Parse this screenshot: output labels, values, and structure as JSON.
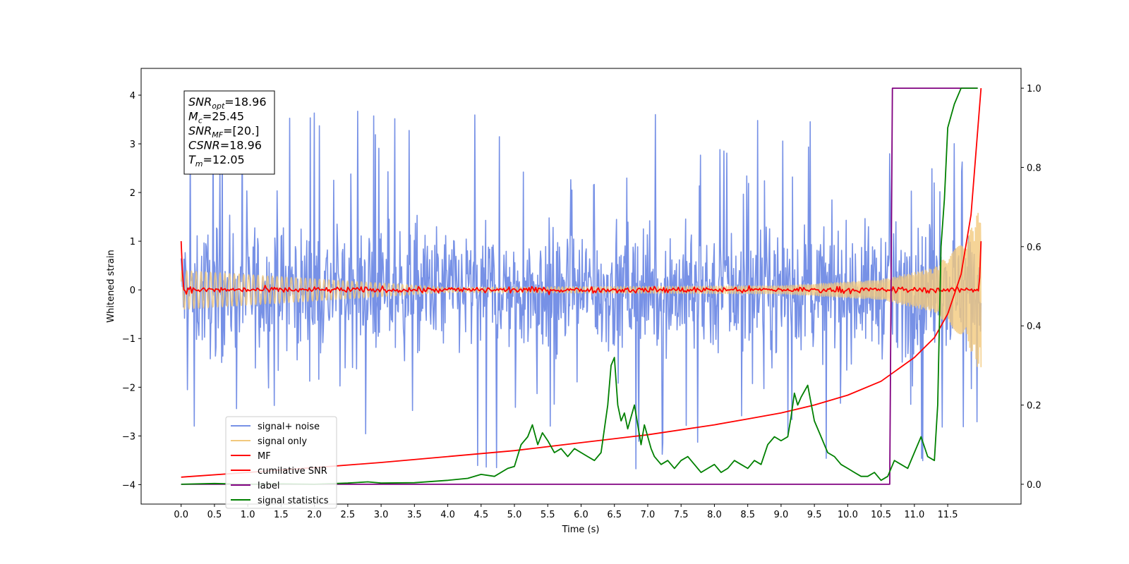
{
  "chart_data": {
    "type": "line",
    "title": "",
    "xlabel": "Time (s)",
    "ylabel": "Whitened strain",
    "y2label": "",
    "xlim": [
      -0.6,
      12.6
    ],
    "ylim": [
      -4.4,
      4.55
    ],
    "y2lim": [
      -0.05,
      1.05
    ],
    "x_ticks": [
      0.0,
      0.5,
      1.0,
      1.5,
      2.0,
      2.5,
      3.0,
      3.5,
      4.0,
      4.5,
      5.0,
      5.5,
      6.0,
      6.5,
      7.0,
      7.5,
      8.0,
      8.5,
      9.0,
      9.5,
      10.0,
      10.5,
      11.0,
      11.5
    ],
    "x_tick_labels": [
      "0.0",
      "0.5",
      "1.0",
      "1.5",
      "2.0",
      "2.5",
      "3.0",
      "3.5",
      "4.0",
      "4.5",
      "5.0",
      "5.5",
      "6.0",
      "6.5",
      "7.0",
      "7.5",
      "8.0",
      "8.5",
      "9.0",
      "9.5",
      "10.0",
      "10.5",
      "11.0",
      "11.5"
    ],
    "y_ticks": [
      -4,
      -3,
      -2,
      -1,
      0,
      1,
      2,
      3,
      4
    ],
    "y_tick_labels": [
      "−4",
      "−3",
      "−2",
      "−1",
      "0",
      "1",
      "2",
      "3",
      "4"
    ],
    "y2_ticks": [
      0.0,
      0.2,
      0.4,
      0.6,
      0.8,
      1.0
    ],
    "y2_tick_labels": [
      "0.0",
      "0.2",
      "0.4",
      "0.6",
      "0.8",
      "1.0"
    ],
    "grid": false,
    "legend_position": "lower-left",
    "annotation_lines": [
      {
        "var": "SNR",
        "sub": "opt",
        "value": "=18.96"
      },
      {
        "var": "M",
        "sub": "c",
        "value": "=25.45"
      },
      {
        "var": "SNR",
        "sub": "MF",
        "value": "=[20.]"
      },
      {
        "var": "CSNR",
        "sub": "",
        "value": "=18.96"
      },
      {
        "var": "T",
        "sub": "m",
        "value": "=12.05"
      }
    ],
    "series": [
      {
        "name": "signal+ noise",
        "axis": "left",
        "color": "#7791e6",
        "kind": "noise",
        "t_start": 0.0,
        "t_end": 12.0,
        "n": 1400,
        "base_amplitude": 1.15,
        "spike_max": 3.9
      },
      {
        "name": "signal only",
        "axis": "left",
        "color": "#f2c97d",
        "kind": "chirp",
        "t_start": 0.0,
        "t_end": 12.0,
        "envelope": [
          [
            0.0,
            0.4
          ],
          [
            4.0,
            0.05
          ],
          [
            9.0,
            0.08
          ],
          [
            10.5,
            0.2
          ],
          [
            11.3,
            0.45
          ],
          [
            11.8,
            1.1
          ],
          [
            12.0,
            1.75
          ]
        ]
      },
      {
        "name": "MF",
        "axis": "left",
        "color": "#ff0000",
        "kind": "mf",
        "t_start": 0.0,
        "t_end": 12.0,
        "n": 600,
        "start_value": 1.0,
        "end_value": 1.0,
        "noise_amplitude": 0.05
      },
      {
        "name": "cumilative SNR",
        "axis": "right",
        "color": "#ff0000",
        "kind": "line",
        "x": [
          0.0,
          1.0,
          2.0,
          3.0,
          4.0,
          5.0,
          6.0,
          7.0,
          8.0,
          8.5,
          9.0,
          9.5,
          10.0,
          10.5,
          11.0,
          11.3,
          11.5,
          11.7,
          11.85,
          12.0
        ],
        "values": [
          0.018,
          0.03,
          0.042,
          0.055,
          0.07,
          0.085,
          0.105,
          0.125,
          0.15,
          0.165,
          0.18,
          0.2,
          0.225,
          0.26,
          0.32,
          0.37,
          0.43,
          0.53,
          0.68,
          1.0
        ]
      },
      {
        "name": "label",
        "axis": "right",
        "color": "#800080",
        "kind": "line",
        "x": [
          0.0,
          10.63,
          10.67,
          11.95
        ],
        "values": [
          0.0,
          0.0,
          1.0,
          1.0
        ]
      },
      {
        "name": "signal statistics",
        "axis": "right",
        "color": "#008000",
        "kind": "line",
        "x": [
          0.0,
          0.5,
          1.0,
          1.5,
          2.0,
          2.5,
          2.8,
          3.0,
          3.5,
          4.0,
          4.3,
          4.5,
          4.7,
          4.9,
          5.0,
          5.1,
          5.2,
          5.27,
          5.35,
          5.42,
          5.5,
          5.6,
          5.7,
          5.8,
          5.9,
          6.0,
          6.1,
          6.2,
          6.3,
          6.4,
          6.45,
          6.5,
          6.55,
          6.6,
          6.65,
          6.7,
          6.8,
          6.9,
          6.95,
          7.0,
          7.05,
          7.1,
          7.2,
          7.3,
          7.4,
          7.5,
          7.6,
          7.7,
          7.8,
          7.9,
          8.0,
          8.1,
          8.2,
          8.3,
          8.4,
          8.5,
          8.6,
          8.7,
          8.8,
          8.9,
          9.0,
          9.1,
          9.15,
          9.2,
          9.25,
          9.3,
          9.4,
          9.5,
          9.6,
          9.7,
          9.8,
          9.9,
          10.0,
          10.1,
          10.2,
          10.3,
          10.4,
          10.5,
          10.6,
          10.7,
          10.8,
          10.9,
          11.0,
          11.1,
          11.2,
          11.3,
          11.35,
          11.4,
          11.45,
          11.5,
          11.55,
          11.6,
          11.7,
          11.8,
          11.9,
          11.95
        ],
        "values": [
          0.0,
          0.002,
          0.0,
          0.001,
          0.0,
          0.003,
          0.006,
          0.003,
          0.004,
          0.01,
          0.015,
          0.025,
          0.02,
          0.04,
          0.045,
          0.1,
          0.12,
          0.15,
          0.1,
          0.13,
          0.11,
          0.08,
          0.09,
          0.07,
          0.09,
          0.08,
          0.07,
          0.06,
          0.08,
          0.2,
          0.3,
          0.32,
          0.2,
          0.16,
          0.18,
          0.14,
          0.2,
          0.1,
          0.15,
          0.12,
          0.09,
          0.07,
          0.05,
          0.06,
          0.04,
          0.06,
          0.07,
          0.05,
          0.03,
          0.04,
          0.05,
          0.03,
          0.04,
          0.06,
          0.05,
          0.04,
          0.06,
          0.05,
          0.1,
          0.12,
          0.11,
          0.12,
          0.17,
          0.23,
          0.2,
          0.22,
          0.25,
          0.16,
          0.12,
          0.08,
          0.07,
          0.05,
          0.04,
          0.03,
          0.02,
          0.02,
          0.03,
          0.01,
          0.02,
          0.06,
          0.05,
          0.04,
          0.08,
          0.12,
          0.07,
          0.06,
          0.2,
          0.6,
          0.72,
          0.9,
          0.93,
          0.96,
          1.0,
          1.0,
          1.0,
          1.0
        ]
      }
    ]
  }
}
